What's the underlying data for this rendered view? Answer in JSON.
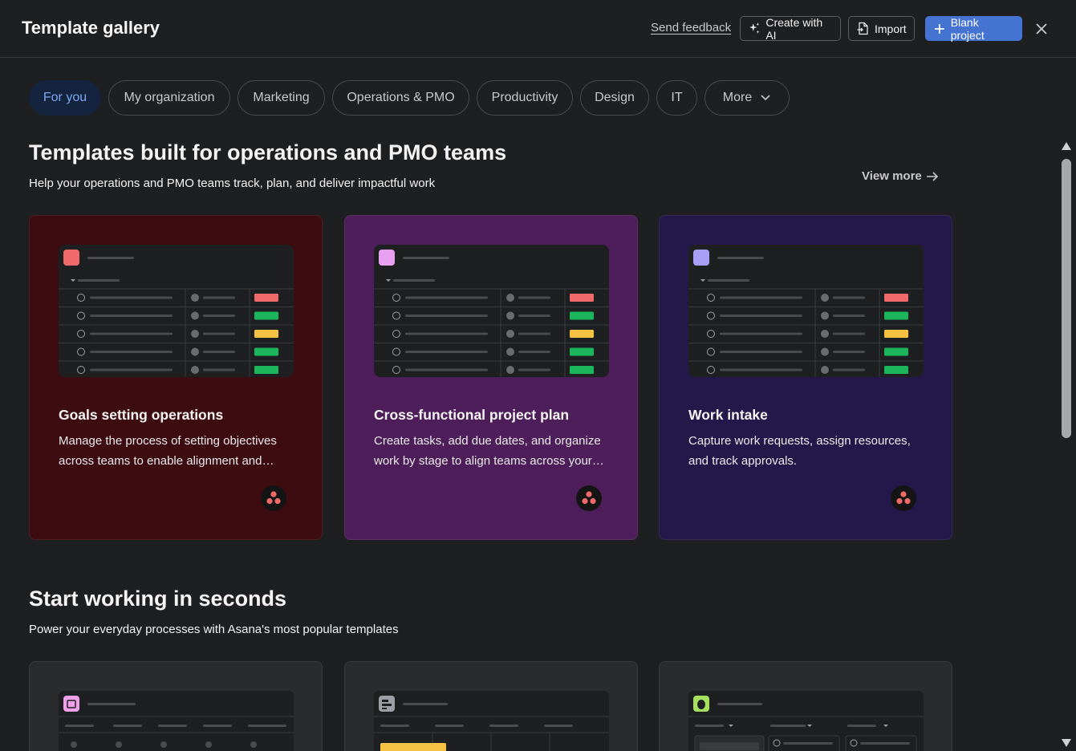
{
  "header": {
    "title": "Template gallery",
    "send_feedback": "Send feedback",
    "create_ai": "Create with AI",
    "import": "Import",
    "blank_project": "Blank project"
  },
  "tabs": [
    {
      "label": "For you",
      "active": true
    },
    {
      "label": "My organization"
    },
    {
      "label": "Marketing"
    },
    {
      "label": "Operations & PMO"
    },
    {
      "label": "Productivity"
    },
    {
      "label": "Design"
    },
    {
      "label": "IT"
    },
    {
      "label": "More"
    }
  ],
  "section1": {
    "title": "Templates built for operations and PMO teams",
    "subtitle": "Help your operations and PMO teams track, plan, and deliver impactful work",
    "view_more": "View more",
    "cards": [
      {
        "title": "Goals setting operations",
        "description": "Manage the process of setting objectives across teams to enable alignment and accountability",
        "bg": "#3d0c11",
        "icon_bg": "#f06a6a"
      },
      {
        "title": "Cross-functional project plan",
        "description": "Create tasks, add due dates, and organize work by stage to align teams across your organization",
        "bg": "#4e1e5a",
        "icon_bg": "#e8a0f0"
      },
      {
        "title": "Work intake",
        "description": "Capture work requests, assign resources, and track approvals.",
        "bg": "#24184a",
        "icon_bg": "#a99ef5"
      }
    ]
  },
  "section2": {
    "title": "Start working in seconds",
    "subtitle": "Power your everyday processes with Asana's most popular templates"
  },
  "colors": {
    "accent": "#4573d2",
    "status_red": "#f06a6a",
    "status_green": "#1bb55c",
    "status_yellow": "#f5c243"
  }
}
